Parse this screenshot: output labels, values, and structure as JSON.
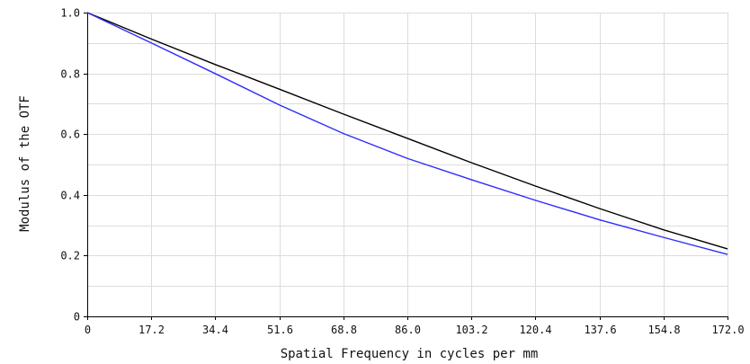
{
  "chart_data": {
    "type": "line",
    "xlabel": "Spatial Frequency in cycles per mm",
    "ylabel": "Modulus of the OTF",
    "xlim": [
      0,
      172.0
    ],
    "ylim": [
      0,
      1.0
    ],
    "x_ticks": [
      "0",
      "17.2",
      "34.4",
      "51.6",
      "68.8",
      "86.0",
      "103.2",
      "120.4",
      "137.6",
      "154.8",
      "172.0"
    ],
    "y_ticks": [
      "0",
      "0.2",
      "0.4",
      "0.6",
      "0.8",
      "1.0"
    ],
    "grid": true,
    "x": [
      0,
      17.2,
      34.4,
      51.6,
      68.8,
      86.0,
      103.2,
      120.4,
      137.6,
      154.8,
      172.0
    ],
    "series": [
      {
        "color": "#000000",
        "values": [
          1.0,
          0.913,
          0.829,
          0.748,
          0.666,
          0.586,
          0.506,
          0.429,
          0.355,
          0.285,
          0.222
        ]
      },
      {
        "color": "#2b2bff",
        "values": [
          1.0,
          0.9,
          0.799,
          0.696,
          0.602,
          0.52,
          0.45,
          0.382,
          0.318,
          0.26,
          0.204
        ]
      }
    ]
  }
}
